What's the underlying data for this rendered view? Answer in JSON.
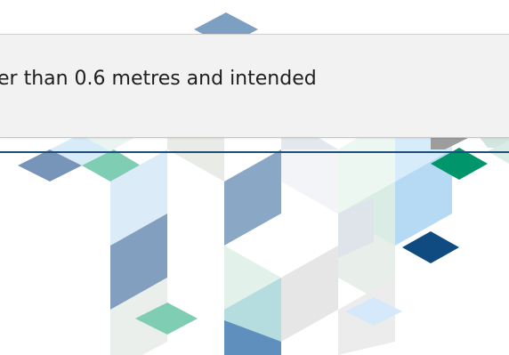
{
  "banner": {
    "text": "er than 0.6 metres and intended"
  },
  "colors": {
    "rule": "#1f4e79",
    "banner_background": "#f2f2f2",
    "text": "#1f1f1f",
    "accent_green": "#00956b",
    "accent_navy": "#0f4a80"
  }
}
